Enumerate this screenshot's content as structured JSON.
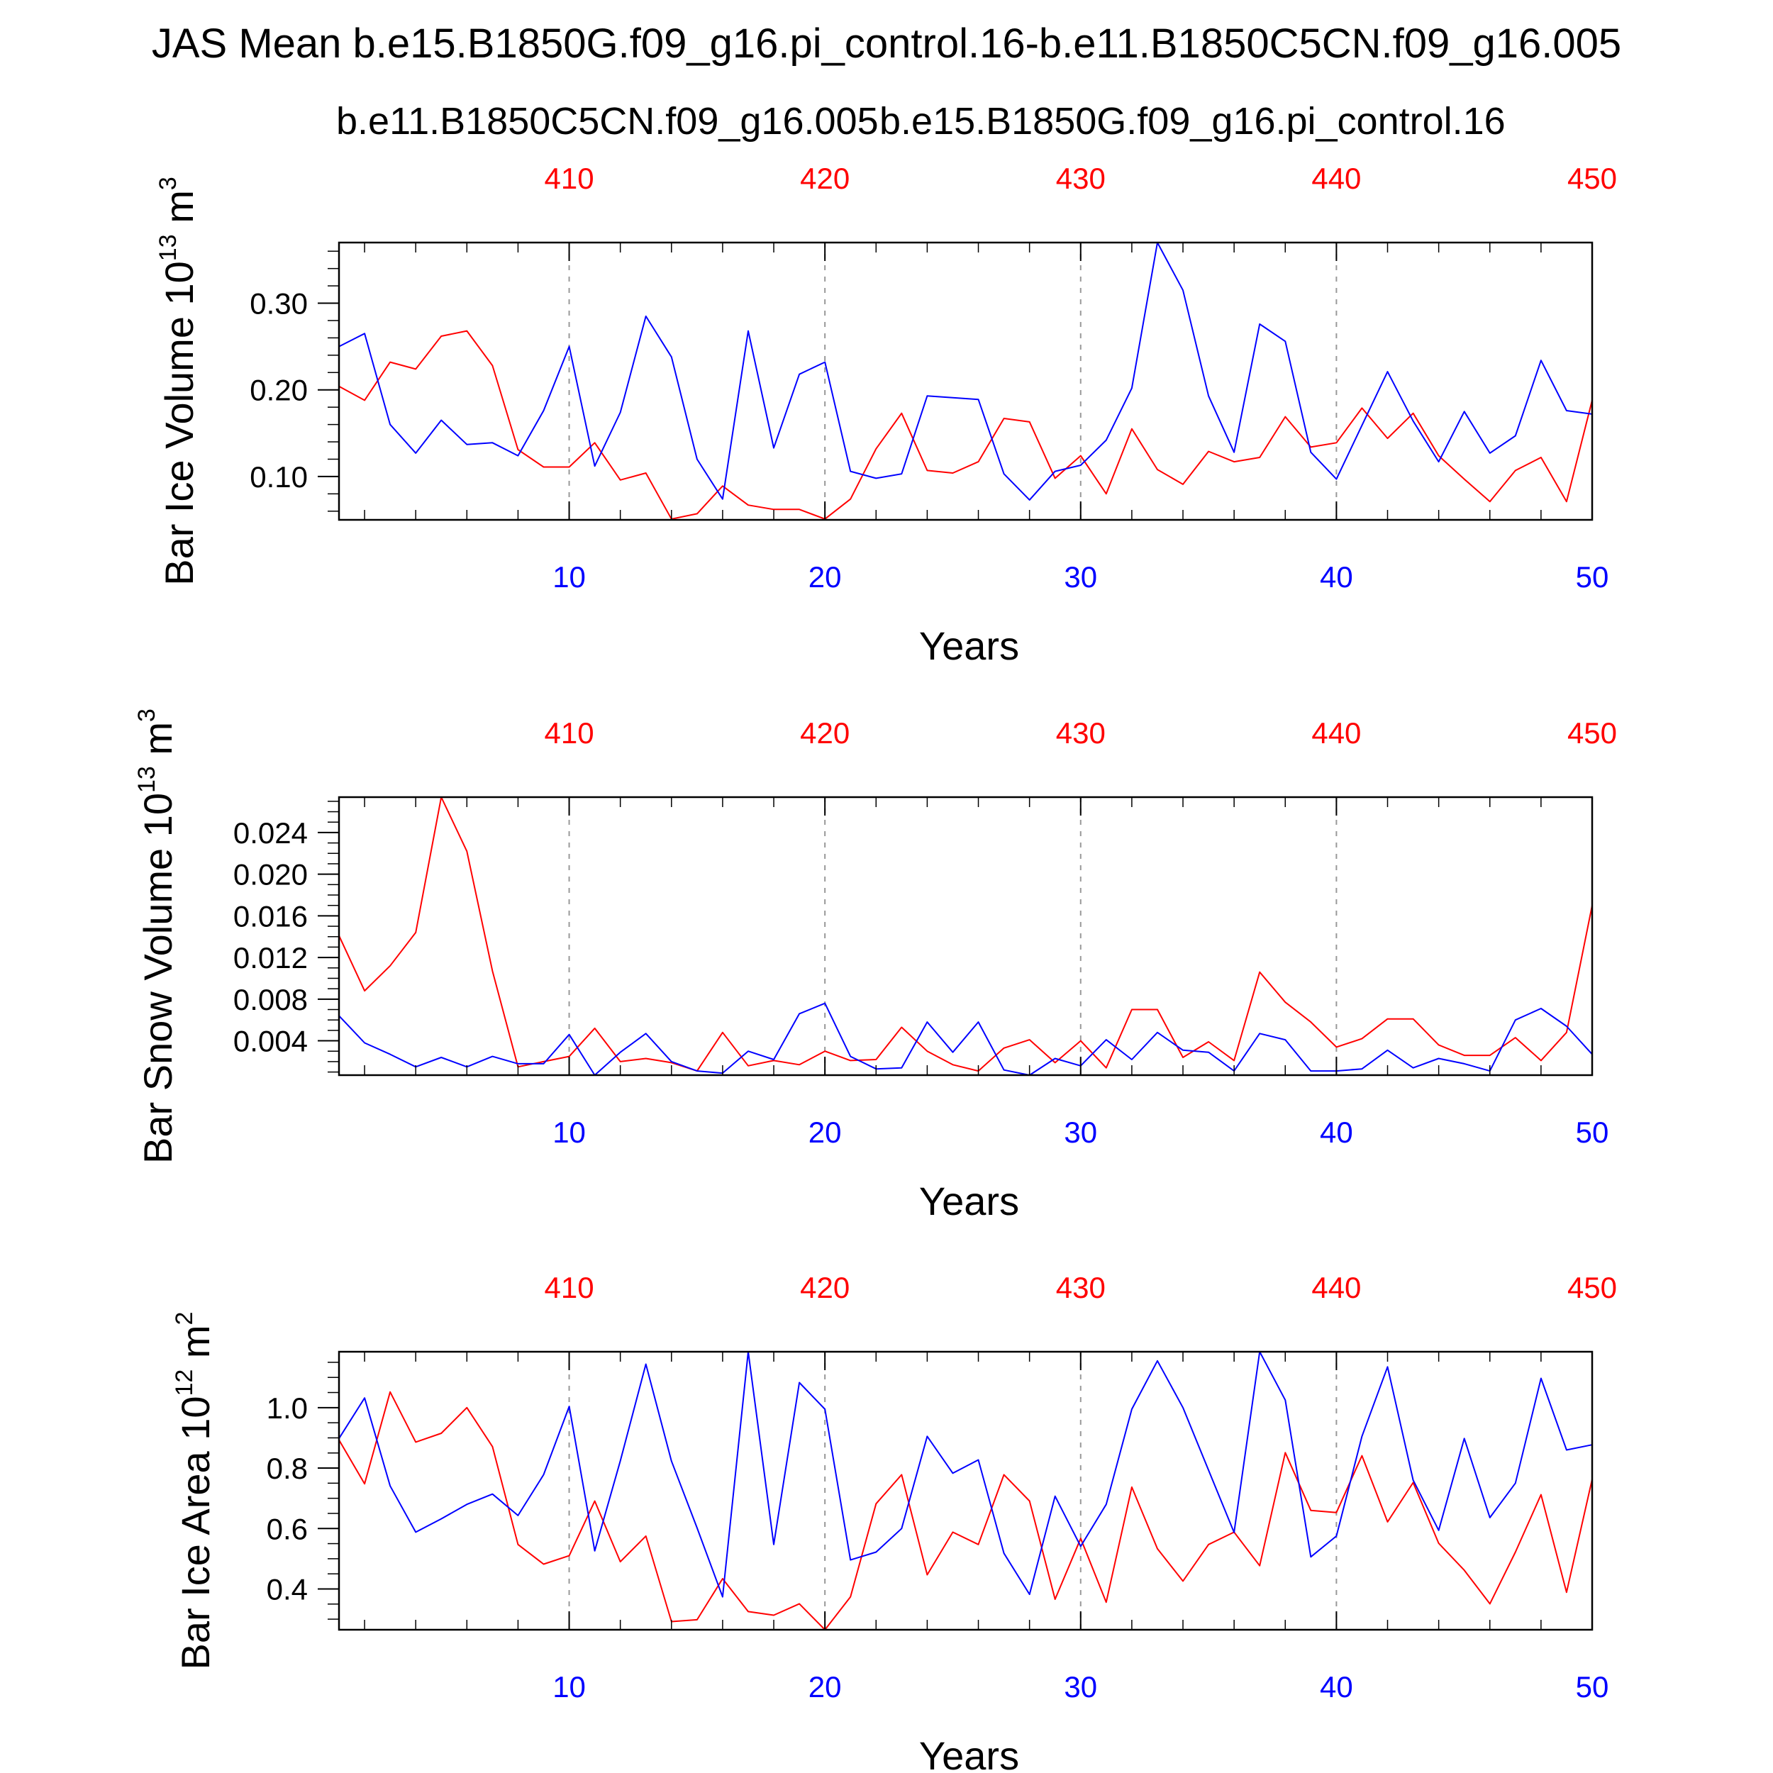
{
  "title": "JAS Mean b.e15.B1850G.f09_g16.pi_control.16-b.e11.B1850C5CN.f09_g16.005",
  "subtitle_red": "b.e11.B1850C5CN.f09_g16.005",
  "subtitle_blue": "b.e15.B1850G.f09_g16.pi_control.16",
  "colors": {
    "red": "#ff0000",
    "blue": "#0000ff",
    "grid": "#999999",
    "axis": "#000000"
  },
  "chart_data": [
    {
      "type": "line",
      "ylabel": "Bar Ice Volume 10",
      "ylabel_exp": "13",
      "ylabel_unit": " m",
      "ylabel_unit_exp": "3",
      "xlabel": "Years",
      "xlim": [
        1,
        50
      ],
      "ylim": [
        0.05,
        0.37
      ],
      "x_ticks": [
        10,
        20,
        30,
        40,
        50
      ],
      "x_tick_labels": [
        "10",
        "20",
        "30",
        "40",
        "50"
      ],
      "top_ticks": [
        10,
        20,
        30,
        40,
        50
      ],
      "top_tick_labels": [
        "410",
        "420",
        "430",
        "440",
        "450"
      ],
      "y_ticks": [
        0.1,
        0.2,
        0.3
      ],
      "y_tick_labels": [
        "0.10",
        "0.20",
        "0.30"
      ],
      "y_minor_step": 0.02,
      "grid_x": [
        10,
        20,
        30,
        40
      ],
      "series": [
        {
          "name": "b.e11.B1850C5CN.f09_g16.005",
          "color": "#ff0000",
          "values": [
            0.204,
            0.188,
            0.232,
            0.224,
            0.262,
            0.268,
            0.228,
            0.131,
            0.111,
            0.111,
            0.139,
            0.096,
            0.104,
            0.051,
            0.057,
            0.089,
            0.067,
            0.062,
            0.062,
            0.051,
            0.074,
            0.132,
            0.173,
            0.107,
            0.104,
            0.117,
            0.167,
            0.163,
            0.098,
            0.124,
            0.08,
            0.155,
            0.108,
            0.091,
            0.129,
            0.117,
            0.122,
            0.169,
            0.134,
            0.139,
            0.179,
            0.144,
            0.173,
            0.124,
            0.097,
            0.071,
            0.107,
            0.122,
            0.071,
            0.188
          ]
        },
        {
          "name": "b.e15.B1850G.f09_g16.pi_control.16",
          "color": "#0000ff",
          "values": [
            0.25,
            0.265,
            0.16,
            0.127,
            0.165,
            0.137,
            0.139,
            0.124,
            0.176,
            0.25,
            0.112,
            0.174,
            0.285,
            0.238,
            0.12,
            0.074,
            0.268,
            0.133,
            0.218,
            0.232,
            0.106,
            0.098,
            0.103,
            0.193,
            0.191,
            0.189,
            0.103,
            0.073,
            0.106,
            0.113,
            0.142,
            0.202,
            0.37,
            0.315,
            0.193,
            0.128,
            0.276,
            0.256,
            0.128,
            0.097,
            0.159,
            0.221,
            0.164,
            0.117,
            0.175,
            0.127,
            0.147,
            0.234,
            0.176,
            0.172
          ]
        }
      ]
    },
    {
      "type": "line",
      "ylabel": "Bar Snow Volume 10",
      "ylabel_exp": "13",
      "ylabel_unit": " m",
      "ylabel_unit_exp": "3",
      "xlabel": "Years",
      "xlim": [
        1,
        50
      ],
      "ylim": [
        0.0007,
        0.0274
      ],
      "x_ticks": [
        10,
        20,
        30,
        40,
        50
      ],
      "x_tick_labels": [
        "10",
        "20",
        "30",
        "40",
        "50"
      ],
      "top_ticks": [
        10,
        20,
        30,
        40,
        50
      ],
      "top_tick_labels": [
        "410",
        "420",
        "430",
        "440",
        "450"
      ],
      "y_ticks": [
        0.004,
        0.008,
        0.012,
        0.016,
        0.02,
        0.024
      ],
      "y_tick_labels": [
        "0.004",
        "0.008",
        "0.012",
        "0.016",
        "0.020",
        "0.024"
      ],
      "y_minor_step": 0.001,
      "grid_x": [
        10,
        20,
        30,
        40
      ],
      "series": [
        {
          "name": "b.e11.B1850C5CN.f09_g16.005",
          "color": "#ff0000",
          "values": [
            0.0141,
            0.0088,
            0.0112,
            0.0144,
            0.0274,
            0.0222,
            0.0107,
            0.0015,
            0.002,
            0.0025,
            0.0052,
            0.002,
            0.0023,
            0.0019,
            0.0011,
            0.0048,
            0.0016,
            0.0021,
            0.0017,
            0.003,
            0.0021,
            0.0022,
            0.0053,
            0.003,
            0.0017,
            0.0011,
            0.0033,
            0.0041,
            0.0019,
            0.004,
            0.0014,
            0.007,
            0.007,
            0.0024,
            0.0039,
            0.0021,
            0.0106,
            0.0077,
            0.0058,
            0.0034,
            0.0042,
            0.0061,
            0.0061,
            0.0036,
            0.0026,
            0.0026,
            0.0043,
            0.0021,
            0.0048,
            0.017
          ]
        },
        {
          "name": "b.e15.B1850G.f09_g16.pi_control.16",
          "color": "#0000ff",
          "values": [
            0.0064,
            0.0038,
            0.0027,
            0.0015,
            0.0024,
            0.0015,
            0.0025,
            0.0018,
            0.0018,
            0.0046,
            0.0007,
            0.0029,
            0.0047,
            0.002,
            0.0011,
            0.0009,
            0.003,
            0.0022,
            0.0066,
            0.0076,
            0.0025,
            0.0013,
            0.0014,
            0.0058,
            0.0029,
            0.0058,
            0.0012,
            0.0007,
            0.0023,
            0.0016,
            0.0041,
            0.0022,
            0.0048,
            0.0031,
            0.0029,
            0.0011,
            0.0047,
            0.0041,
            0.0011,
            0.0011,
            0.0013,
            0.0031,
            0.0014,
            0.0023,
            0.0018,
            0.0011,
            0.006,
            0.0071,
            0.0054,
            0.0027
          ]
        }
      ]
    },
    {
      "type": "line",
      "ylabel": "Bar Ice Area 10",
      "ylabel_exp": "12",
      "ylabel_unit": " m",
      "ylabel_unit_exp": "2",
      "xlabel": "Years",
      "xlim": [
        1,
        50
      ],
      "ylim": [
        0.265,
        1.185
      ],
      "x_ticks": [
        10,
        20,
        30,
        40,
        50
      ],
      "x_tick_labels": [
        "10",
        "20",
        "30",
        "40",
        "50"
      ],
      "top_ticks": [
        10,
        20,
        30,
        40,
        50
      ],
      "top_tick_labels": [
        "410",
        "420",
        "430",
        "440",
        "450"
      ],
      "y_ticks": [
        0.4,
        0.6,
        0.8,
        1.0
      ],
      "y_tick_labels": [
        "0.4",
        "0.6",
        "0.8",
        "1.0"
      ],
      "y_minor_step": 0.05,
      "grid_x": [
        10,
        20,
        30,
        40
      ],
      "series": [
        {
          "name": "b.e11.B1850C5CN.f09_g16.005",
          "color": "#ff0000",
          "values": [
            0.893,
            0.748,
            1.052,
            0.886,
            0.915,
            1.0,
            0.871,
            0.547,
            0.482,
            0.51,
            0.691,
            0.49,
            0.575,
            0.292,
            0.298,
            0.434,
            0.325,
            0.313,
            0.351,
            0.265,
            0.374,
            0.682,
            0.778,
            0.447,
            0.588,
            0.547,
            0.778,
            0.691,
            0.366,
            0.567,
            0.356,
            0.737,
            0.533,
            0.426,
            0.547,
            0.588,
            0.477,
            0.851,
            0.66,
            0.653,
            0.841,
            0.622,
            0.752,
            0.551,
            0.462,
            0.351,
            0.522,
            0.712,
            0.389,
            0.763
          ]
        },
        {
          "name": "b.e15.B1850G.f09_g16.pi_control.16",
          "color": "#0000ff",
          "values": [
            0.898,
            1.032,
            0.741,
            0.588,
            0.632,
            0.68,
            0.714,
            0.643,
            0.778,
            1.004,
            0.526,
            0.824,
            1.144,
            0.823,
            0.602,
            0.374,
            1.185,
            0.547,
            1.083,
            0.995,
            0.496,
            0.522,
            0.6,
            0.905,
            0.783,
            0.827,
            0.518,
            0.382,
            0.707,
            0.541,
            0.68,
            0.995,
            1.155,
            1.0,
            0.793,
            0.587,
            1.185,
            1.025,
            0.506,
            0.575,
            0.905,
            1.135,
            0.76,
            0.594,
            0.898,
            0.636,
            0.75,
            1.097,
            0.86,
            0.877
          ]
        }
      ]
    }
  ]
}
